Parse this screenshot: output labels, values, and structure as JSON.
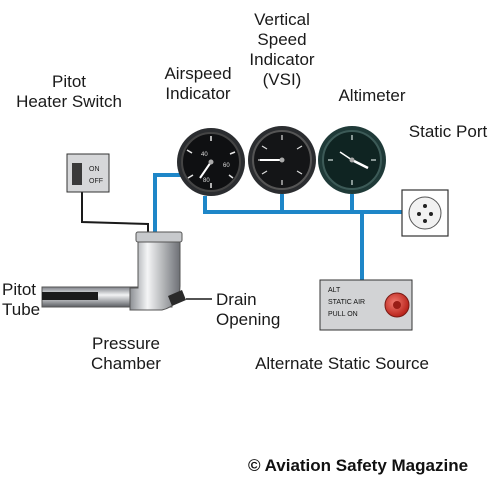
{
  "labels": {
    "pitot_heater_switch": [
      "Pitot",
      "Heater Switch"
    ],
    "vsi": [
      "Vertical",
      "Speed",
      "Indicator",
      "(VSI)"
    ],
    "airspeed_indicator": [
      "Airspeed",
      "Indicator"
    ],
    "altimeter": "Altimeter",
    "static_port": "Static Port",
    "pitot_tube": [
      "Pitot",
      "Tube"
    ],
    "pressure_chamber": [
      "Pressure",
      "Chamber"
    ],
    "drain_opening": [
      "Drain",
      "Opening"
    ],
    "alternate_static_source": "Alternate Static Source"
  },
  "switch_labels": {
    "on": "ON",
    "off": "OFF"
  },
  "alt_static_panel": [
    "ALT",
    "STATIC AIR",
    "PULL ON"
  ],
  "copyright": "© Aviation Safety Magazine",
  "colors": {
    "line_blue": "#1e86c8",
    "knob_red": "#d8342a"
  }
}
